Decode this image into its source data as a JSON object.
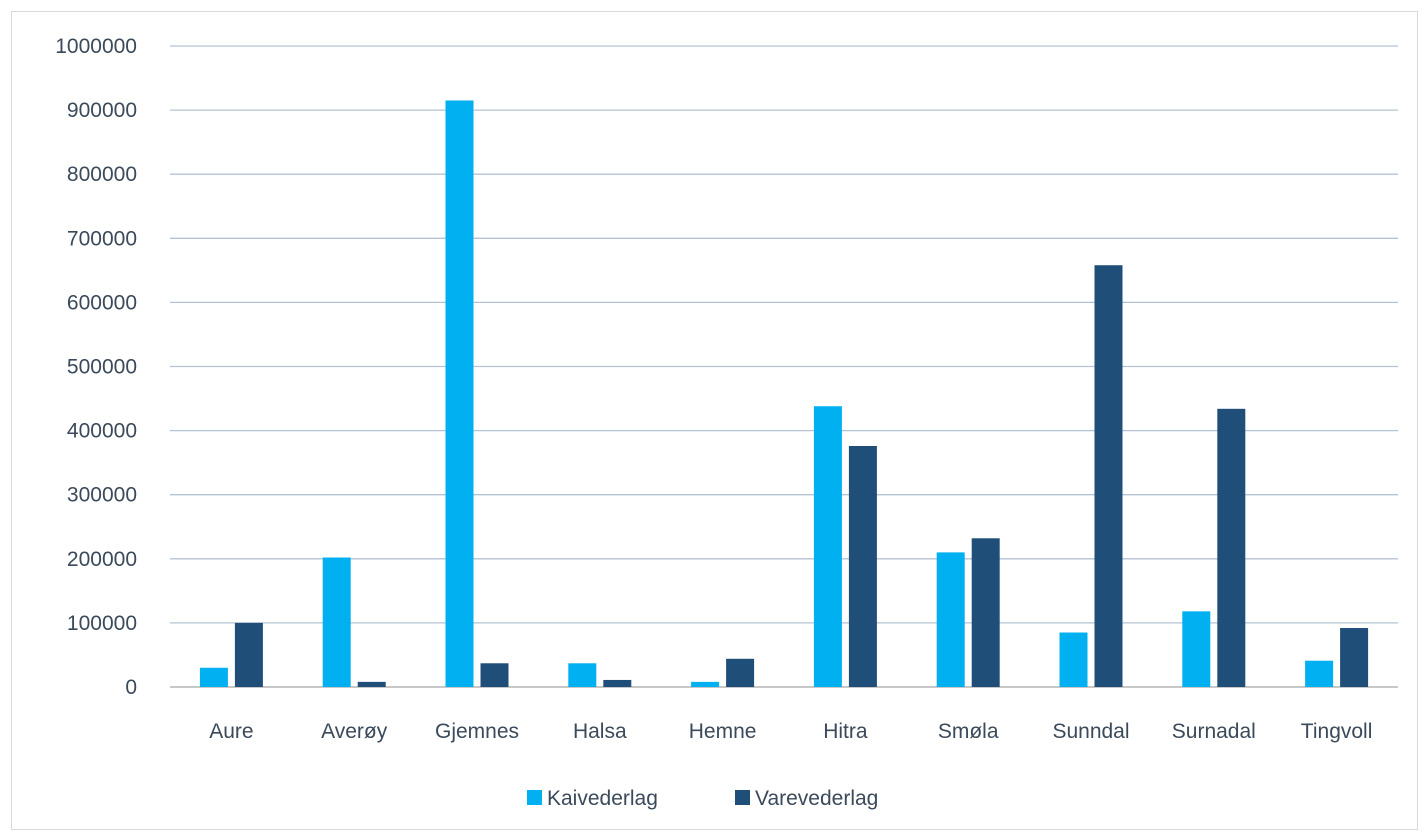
{
  "chart_data": {
    "type": "bar",
    "categories": [
      "Aure",
      "Averøy",
      "Gjemnes",
      "Halsa",
      "Hemne",
      "Hitra",
      "Smøla",
      "Sunndal",
      "Surnadal",
      "Tingvoll"
    ],
    "series": [
      {
        "name": "Kaivederlag",
        "color": "#00b0f0",
        "values": [
          30000,
          202000,
          915000,
          37000,
          8000,
          438000,
          210000,
          85000,
          118000,
          41000
        ]
      },
      {
        "name": "Varevederlag",
        "color": "#1f4e79",
        "values": [
          100000,
          8000,
          37000,
          11000,
          44000,
          376000,
          232000,
          658000,
          434000,
          92000
        ]
      }
    ],
    "title": "",
    "xlabel": "",
    "ylabel": "",
    "ylim": [
      0,
      1000000
    ],
    "yticks": [
      "0",
      "100000",
      "200000",
      "300000",
      "400000",
      "500000",
      "600000",
      "700000",
      "800000",
      "900000",
      "1000000"
    ],
    "grid": true,
    "legend_position": "bottom"
  }
}
